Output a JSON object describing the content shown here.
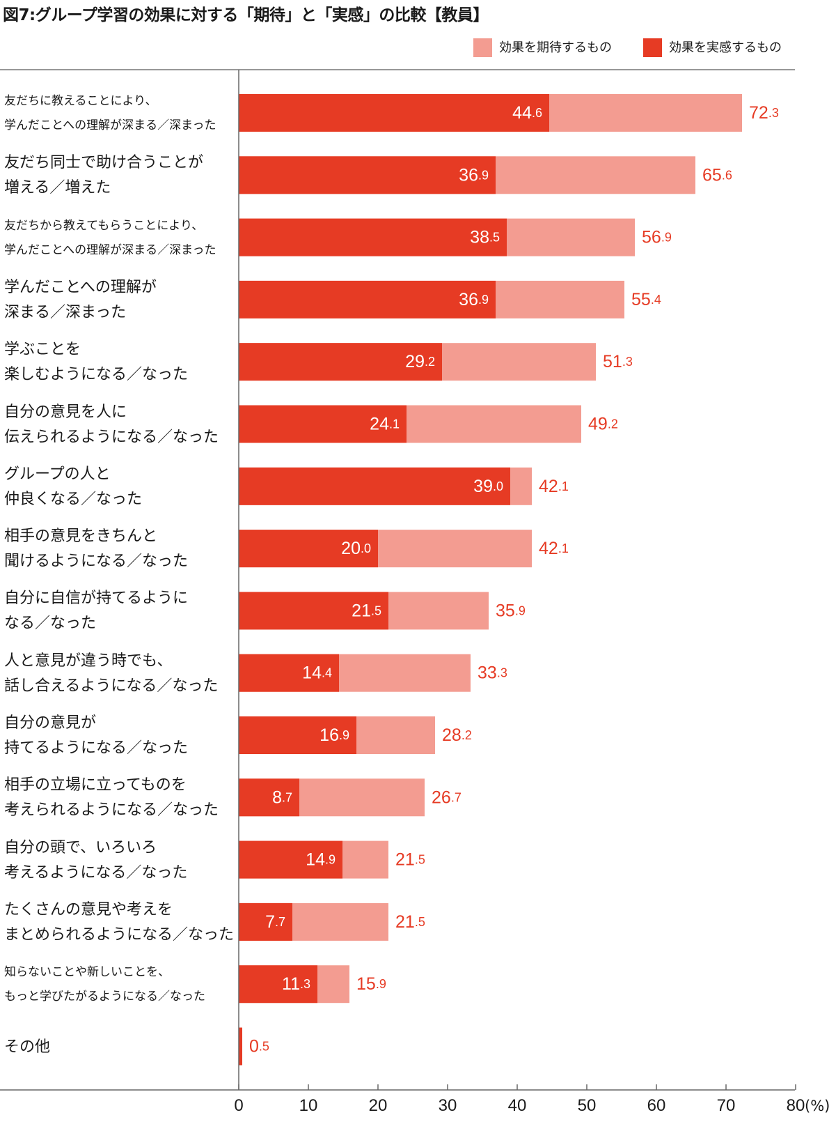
{
  "chart_data": {
    "type": "bar",
    "orientation": "horizontal",
    "overlap": true,
    "title": "図7:グループ学習の効果に対する「期待」と「実感」の比較【教員】",
    "unit": "(%)",
    "xlim": [
      0,
      80
    ],
    "xticks": [
      0,
      10,
      20,
      30,
      40,
      50,
      60,
      70,
      80
    ],
    "legend_position": "top-right",
    "colors": {
      "expect": "#f39c91",
      "actual": "#e63b24",
      "label_expect": "#e63b24",
      "label_actual": "#ffffff",
      "axis": "#666666"
    },
    "categories": [
      {
        "lines": [
          "友だちに教えることにより、",
          "学んだことへの理解が深まる／深まった"
        ],
        "size": "small"
      },
      {
        "lines": [
          "友だち同士で助け合うことが",
          "増える／増えた"
        ],
        "size": "big"
      },
      {
        "lines": [
          "友だちから教えてもらうことにより、",
          "学んだことへの理解が深まる／深まった"
        ],
        "size": "small"
      },
      {
        "lines": [
          "学んだことへの理解が",
          "深まる／深まった"
        ],
        "size": "big"
      },
      {
        "lines": [
          "学ぶことを",
          "楽しむようになる／なった"
        ],
        "size": "big"
      },
      {
        "lines": [
          "自分の意見を人に",
          "伝えられるようになる／なった"
        ],
        "size": "big"
      },
      {
        "lines": [
          "グループの人と",
          "仲良くなる／なった"
        ],
        "size": "big"
      },
      {
        "lines": [
          "相手の意見をきちんと",
          "聞けるようになる／なった"
        ],
        "size": "big"
      },
      {
        "lines": [
          "自分に自信が持てるように",
          "なる／なった"
        ],
        "size": "big"
      },
      {
        "lines": [
          "人と意見が違う時でも、",
          "話し合えるようになる／なった"
        ],
        "size": "big"
      },
      {
        "lines": [
          "自分の意見が",
          "持てるようになる／なった"
        ],
        "size": "big"
      },
      {
        "lines": [
          "相手の立場に立ってものを",
          "考えられるようになる／なった"
        ],
        "size": "big"
      },
      {
        "lines": [
          "自分の頭で、いろいろ",
          "考えるようになる／なった"
        ],
        "size": "big"
      },
      {
        "lines": [
          "たくさんの意見や考えを",
          "まとめられるようになる／なった"
        ],
        "size": "big"
      },
      {
        "lines": [
          "知らないことや新しいことを、",
          "もっと学びたがるようになる／なった"
        ],
        "size": "small"
      },
      {
        "lines": [
          "その他"
        ],
        "size": "big"
      }
    ],
    "series": [
      {
        "name": "効果を期待するもの",
        "key": "expect",
        "values": [
          72.3,
          65.6,
          56.9,
          55.4,
          51.3,
          49.2,
          42.1,
          42.1,
          35.9,
          33.3,
          28.2,
          26.7,
          21.5,
          21.5,
          15.9,
          0.5
        ]
      },
      {
        "name": "効果を実感するもの",
        "key": "actual",
        "values": [
          44.6,
          36.9,
          38.5,
          36.9,
          29.2,
          24.1,
          39.0,
          20.0,
          21.5,
          14.4,
          16.9,
          8.7,
          14.9,
          7.7,
          11.3,
          null
        ]
      }
    ]
  }
}
